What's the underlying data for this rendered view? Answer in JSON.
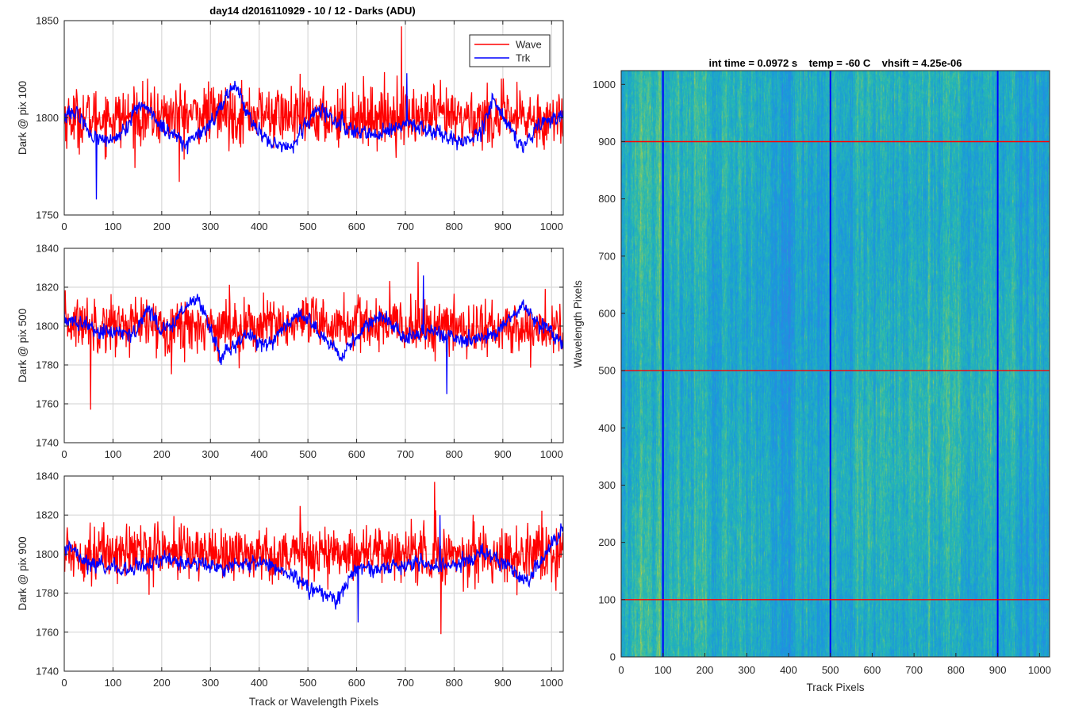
{
  "figure_title": "day14 d2016110929 - 10 / 12 - Darks (ADU)",
  "colors": {
    "wave": "#ff0000",
    "trk": "#0000ff",
    "grid": "#d9d9d9",
    "axis": "#262626"
  },
  "legend": {
    "entries": [
      "Wave",
      "Trk"
    ],
    "placement": "top-right"
  },
  "chart_data": [
    {
      "type": "line",
      "ylabel": "Dark @ pix 100",
      "xlabel": "",
      "xlim": [
        0,
        1024
      ],
      "ylim": [
        1750,
        1850
      ],
      "xticks": [
        0,
        100,
        200,
        300,
        400,
        500,
        600,
        700,
        800,
        900,
        1000
      ],
      "yticks": [
        1750,
        1800,
        1850
      ],
      "grid": true,
      "legend": true,
      "series": [
        {
          "name": "Wave",
          "color": "#ff0000",
          "mean": 1801,
          "spread": 7.5,
          "min": 1767,
          "max": 1847,
          "anchors": [
            [
              0,
              1800
            ],
            [
              100,
              1800
            ],
            [
              200,
              1801
            ],
            [
              300,
              1802
            ],
            [
              400,
              1802
            ],
            [
              500,
              1800
            ],
            [
              600,
              1801
            ],
            [
              700,
              1801
            ],
            [
              800,
              1800
            ],
            [
              900,
              1800
            ],
            [
              1023,
              1799
            ]
          ]
        },
        {
          "name": "Trk",
          "color": "#0000ff",
          "mean": 1795,
          "spread": 2.5,
          "min": 1758,
          "max": 1823,
          "anchors": [
            [
              0,
              1800
            ],
            [
              30,
              1802
            ],
            [
              60,
              1790
            ],
            [
              110,
              1789
            ],
            [
              160,
              1808
            ],
            [
              200,
              1795
            ],
            [
              250,
              1787
            ],
            [
              300,
              1795
            ],
            [
              350,
              1818
            ],
            [
              380,
              1800
            ],
            [
              420,
              1787
            ],
            [
              470,
              1786
            ],
            [
              520,
              1805
            ],
            [
              570,
              1796
            ],
            [
              640,
              1790
            ],
            [
              700,
              1797
            ],
            [
              760,
              1793
            ],
            [
              800,
              1788
            ],
            [
              850,
              1790
            ],
            [
              880,
              1810
            ],
            [
              920,
              1792
            ],
            [
              940,
              1785
            ],
            [
              970,
              1796
            ],
            [
              1023,
              1802
            ]
          ]
        }
      ]
    },
    {
      "type": "line",
      "ylabel": "Dark @ pix 500",
      "xlabel": "",
      "xlim": [
        0,
        1024
      ],
      "ylim": [
        1740,
        1840
      ],
      "xticks": [
        0,
        100,
        200,
        300,
        400,
        500,
        600,
        700,
        800,
        900,
        1000
      ],
      "yticks": [
        1740,
        1760,
        1780,
        1800,
        1820,
        1840
      ],
      "grid": true,
      "series": [
        {
          "name": "Wave",
          "color": "#ff0000",
          "mean": 1800,
          "spread": 7,
          "min": 1757,
          "max": 1833,
          "anchors": [
            [
              0,
              1802
            ],
            [
              200,
              1800
            ],
            [
              400,
              1800
            ],
            [
              600,
              1801
            ],
            [
              800,
              1799
            ],
            [
              1023,
              1798
            ]
          ]
        },
        {
          "name": "Trk",
          "color": "#0000ff",
          "mean": 1797,
          "spread": 2.5,
          "min": 1765,
          "max": 1826,
          "anchors": [
            [
              0,
              1803
            ],
            [
              50,
              1800
            ],
            [
              100,
              1796
            ],
            [
              150,
              1798
            ],
            [
              170,
              1810
            ],
            [
              200,
              1796
            ],
            [
              270,
              1815
            ],
            [
              290,
              1805
            ],
            [
              320,
              1783
            ],
            [
              370,
              1795
            ],
            [
              420,
              1790
            ],
            [
              480,
              1806
            ],
            [
              520,
              1798
            ],
            [
              570,
              1784
            ],
            [
              620,
              1800
            ],
            [
              650,
              1806
            ],
            [
              700,
              1794
            ],
            [
              760,
              1797
            ],
            [
              820,
              1792
            ],
            [
              880,
              1796
            ],
            [
              940,
              1810
            ],
            [
              980,
              1800
            ],
            [
              1023,
              1790
            ]
          ]
        }
      ]
    },
    {
      "type": "line",
      "ylabel": "Dark @ pix 900",
      "xlabel": "Track or Wavelength Pixels",
      "xlim": [
        0,
        1024
      ],
      "ylim": [
        1740,
        1840
      ],
      "xticks": [
        0,
        100,
        200,
        300,
        400,
        500,
        600,
        700,
        800,
        900,
        1000
      ],
      "yticks": [
        1740,
        1760,
        1780,
        1800,
        1820,
        1840
      ],
      "grid": true,
      "series": [
        {
          "name": "Wave",
          "color": "#ff0000",
          "mean": 1800,
          "spread": 7,
          "min": 1759,
          "max": 1837,
          "anchors": [
            [
              0,
              1800
            ],
            [
              200,
              1802
            ],
            [
              400,
              1800
            ],
            [
              600,
              1801
            ],
            [
              800,
              1800
            ],
            [
              1023,
              1799
            ]
          ]
        },
        {
          "name": "Trk",
          "color": "#0000ff",
          "mean": 1795,
          "spread": 2.5,
          "min": 1765,
          "max": 1820,
          "anchors": [
            [
              0,
              1805
            ],
            [
              50,
              1795
            ],
            [
              120,
              1792
            ],
            [
              200,
              1797
            ],
            [
              260,
              1796
            ],
            [
              330,
              1792
            ],
            [
              380,
              1797
            ],
            [
              420,
              1795
            ],
            [
              560,
              1776
            ],
            [
              600,
              1793
            ],
            [
              660,
              1793
            ],
            [
              720,
              1795
            ],
            [
              800,
              1794
            ],
            [
              860,
              1800
            ],
            [
              900,
              1795
            ],
            [
              950,
              1786
            ],
            [
              1000,
              1805
            ],
            [
              1023,
              1812
            ]
          ]
        }
      ]
    },
    {
      "type": "heatmap",
      "title": "int time = 0.0972 s    temp = -60 C    vhsift = 4.25e-06",
      "xlabel": "Track Pixels",
      "ylabel": "Wavelength Pixels",
      "xlim": [
        0,
        1024
      ],
      "ylim": [
        0,
        1024
      ],
      "xticks": [
        0,
        100,
        200,
        300,
        400,
        500,
        600,
        700,
        800,
        900,
        1000
      ],
      "yticks": [
        0,
        100,
        200,
        300,
        400,
        500,
        600,
        700,
        800,
        900,
        1000
      ],
      "colormap": "parula",
      "vertical_markers": {
        "x": [
          100,
          500,
          900
        ],
        "color": "#0000ff"
      },
      "horizontal_markers": {
        "y": [
          100,
          500,
          900
        ],
        "color": "#ff0000"
      }
    }
  ]
}
